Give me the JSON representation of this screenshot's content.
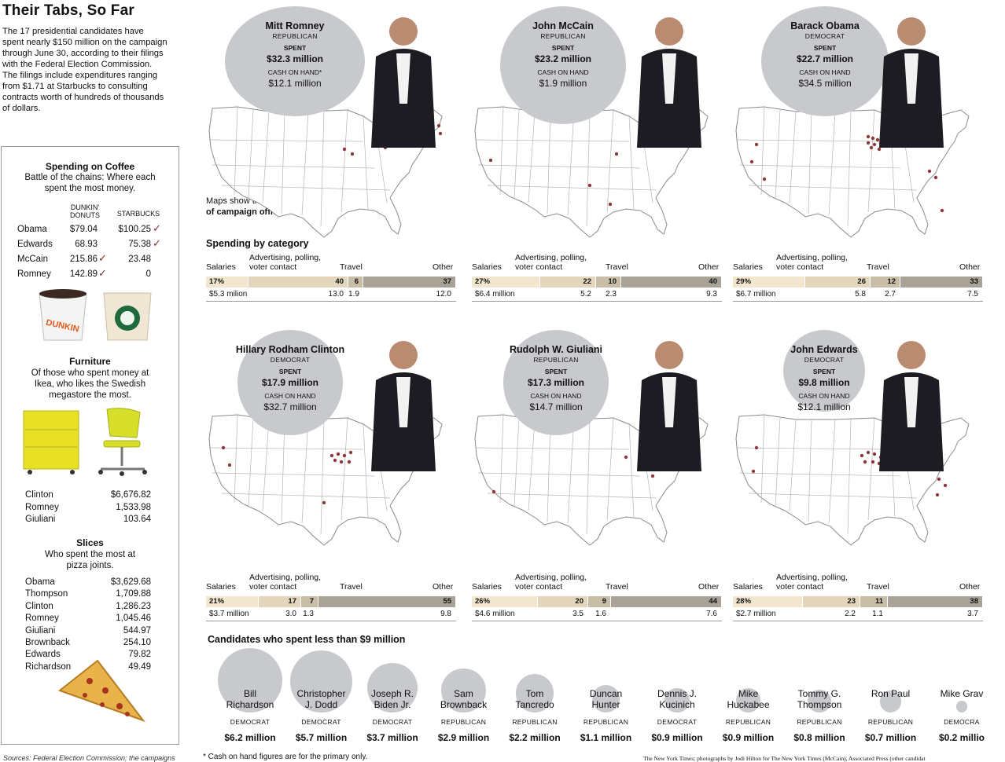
{
  "title": "Their Tabs, So Far",
  "intro": "The 17 presidential candidates have spent nearly $150 million on the campaign through June 30, according to their filings with the Federal Election Commission. The filings include expenditures ranging from $1.71 at Starbucks to consulting contracts worth of hundreds of thousands of dollars.",
  "colors": {
    "bubble": "#c7c9cc",
    "salaries": "#f2e6cf",
    "advertising": "#e3d6bd",
    "travel": "#c8bea8",
    "other": "#a9a296",
    "check": "#8a2a2a",
    "office_dot": "#8a3a3a"
  },
  "sidebar": {
    "coffee": {
      "heading": "Spending on Coffee",
      "subheading": "Battle of the chains: Where each spent the most money.",
      "col1": "DUNKIN' DONUTS",
      "col2": "STARBUCKS",
      "rows": [
        {
          "name": "Obama",
          "dunkin": "$79.04",
          "starbucks": "$100.25"
        },
        {
          "name": "Edwards",
          "dunkin": "68.93",
          "starbucks": "75.38"
        },
        {
          "name": "McCain",
          "dunkin": "215.86",
          "starbucks": "23.48"
        },
        {
          "name": "Romney",
          "dunkin": "142.89",
          "starbucks": "0"
        }
      ],
      "check_mark": "✓"
    },
    "furniture": {
      "heading": "Furniture",
      "subheading": "Of those who spent money at Ikea, who likes the Swedish megastore the most.",
      "rows": [
        {
          "name": "Clinton",
          "value": "$6,676.82"
        },
        {
          "name": "Romney",
          "value": "1,533.98"
        },
        {
          "name": "Giuliani",
          "value": "103.64"
        }
      ]
    },
    "slices": {
      "heading": "Slices",
      "subheading": "Who spent the most at pizza joints.",
      "rows": [
        {
          "name": "Obama",
          "value": "$3,629.68"
        },
        {
          "name": "Thompson",
          "value": "1,709.88"
        },
        {
          "name": "Clinton",
          "value": "1,286.23"
        },
        {
          "name": "Romney",
          "value": "1,045.46"
        },
        {
          "name": "Giuliani",
          "value": "544.97"
        },
        {
          "name": "Brownback",
          "value": "254.10"
        },
        {
          "name": "Edwards",
          "value": "79.82"
        },
        {
          "name": "Richardson",
          "value": "49.49"
        }
      ]
    }
  },
  "maps_note_1": "Maps show the locations",
  "maps_note_2": "of campaign offices",
  "spending_by_category": "Spending by category",
  "category_labels": {
    "salaries": "Salaries",
    "advertising": "Advertising, polling, voter contact",
    "travel": "Travel",
    "other": "Other"
  },
  "labels": {
    "spent": "SPENT",
    "cash_on_hand": "CASH ON HAND",
    "cash_on_hand_star": "CASH ON HAND*"
  },
  "candidates": [
    {
      "name": "Mitt Romney",
      "party": "REPUBLICAN",
      "spent": "$32.3 million",
      "cash": "$12.1 million",
      "star": true,
      "pct": [
        "17%",
        "40",
        "6",
        "37"
      ],
      "amounts": [
        "$5.3 milion",
        "13.0",
        "1.9",
        "12.0"
      ]
    },
    {
      "name": "John McCain",
      "party": "REPUBLICAN",
      "spent": "$23.2 million",
      "cash": "$1.9 million",
      "star": false,
      "pct": [
        "27%",
        "22",
        "10",
        "40"
      ],
      "amounts": [
        "$6.4 million",
        "5.2",
        "2.3",
        "9.3"
      ]
    },
    {
      "name": "Barack Obama",
      "party": "DEMOCRAT",
      "spent": "$22.7 million",
      "cash": "$34.5 million",
      "star": false,
      "pct": [
        "29%",
        "26",
        "12",
        "33"
      ],
      "amounts": [
        "$6.7 million",
        "5.8",
        "2.7",
        "7.5"
      ]
    },
    {
      "name": "Hillary Rodham Clinton",
      "party": "DEMOCRAT",
      "spent": "$17.9 million",
      "cash": "$32.7 million",
      "star": false,
      "pct": [
        "21%",
        "17",
        "7",
        "55"
      ],
      "amounts": [
        "$3.7 million",
        "3.0",
        "1.3",
        "9.8"
      ]
    },
    {
      "name": "Rudolph W. Giuliani",
      "party": "REPUBLICAN",
      "spent": "$17.3 million",
      "cash": "$14.7 million",
      "star": false,
      "pct": [
        "26%",
        "20",
        "9",
        "44"
      ],
      "amounts": [
        "$4.6 million",
        "3.5",
        "1.6",
        "7.6"
      ]
    },
    {
      "name": "John Edwards",
      "party": "DEMOCRAT",
      "spent": "$9.8 million",
      "cash": "$12.1 million",
      "star": false,
      "pct": [
        "28%",
        "23",
        "11",
        "38"
      ],
      "amounts": [
        "$2.7 million",
        "2.2",
        "1.1",
        "3.7"
      ]
    }
  ],
  "small_heading": "Candidates who spent less than $9 million",
  "small_candidates": [
    {
      "line1": "Bill",
      "line2": "Richardson",
      "party": "DEMOCRAT",
      "amount": "$6.2 million"
    },
    {
      "line1": "Christopher",
      "line2": "J. Dodd",
      "party": "DEMOCRAT",
      "amount": "$5.7 million"
    },
    {
      "line1": "Joseph R.",
      "line2": "Biden Jr.",
      "party": "DEMOCRAT",
      "amount": "$3.7 million"
    },
    {
      "line1": "Sam",
      "line2": "Brownback",
      "party": "REPUBLICAN",
      "amount": "$2.9 million"
    },
    {
      "line1": "Tom",
      "line2": "Tancredo",
      "party": "REPUBLICAN",
      "amount": "$2.2 million"
    },
    {
      "line1": "Duncan",
      "line2": "Hunter",
      "party": "REPUBLICAN",
      "amount": "$1.1 million"
    },
    {
      "line1": "Dennis J.",
      "line2": "Kucinich",
      "party": "DEMOCRAT",
      "amount": "$0.9 million"
    },
    {
      "line1": "Mike",
      "line2": "Huckabee",
      "party": "REPUBLICAN",
      "amount": "$0.9 million"
    },
    {
      "line1": "Tommy G.",
      "line2": "Thompson",
      "party": "REPUBLICAN",
      "amount": "$0.8 million"
    },
    {
      "line1": "Ron Paul",
      "line2": "",
      "party": "REPUBLICAN",
      "amount": "$0.7 million"
    },
    {
      "line1": "Mike Grav",
      "line2": "",
      "party": "DEMOCRA",
      "amount": "$0.2 millio"
    }
  ],
  "footnote": "* Cash on hand figures are for the primary only.",
  "sources": "Sources: Federal Election Commission; the campaigns",
  "credit": "The New York Times; photographs by Jodi Hilton for The New York Times (McCain), Associated Press (other candidat",
  "chart_data": [
    {
      "type": "bar",
      "title": "Spending by category",
      "categories": [
        "Salaries",
        "Advertising, polling, voter contact",
        "Travel",
        "Other"
      ],
      "series": [
        {
          "name": "Mitt Romney",
          "values": [
            17,
            40,
            6,
            37
          ],
          "amounts_millions": [
            5.3,
            13.0,
            1.9,
            12.0
          ]
        },
        {
          "name": "John McCain",
          "values": [
            27,
            22,
            10,
            40
          ],
          "amounts_millions": [
            6.4,
            5.2,
            2.3,
            9.3
          ]
        },
        {
          "name": "Barack Obama",
          "values": [
            29,
            26,
            12,
            33
          ],
          "amounts_millions": [
            6.7,
            5.8,
            2.7,
            7.5
          ]
        },
        {
          "name": "Hillary Rodham Clinton",
          "values": [
            21,
            17,
            7,
            55
          ],
          "amounts_millions": [
            3.7,
            3.0,
            1.3,
            9.8
          ]
        },
        {
          "name": "Rudolph W. Giuliani",
          "values": [
            26,
            20,
            9,
            44
          ],
          "amounts_millions": [
            4.6,
            3.5,
            1.6,
            7.6
          ]
        },
        {
          "name": "John Edwards",
          "values": [
            28,
            23,
            11,
            38
          ],
          "amounts_millions": [
            2.7,
            2.2,
            1.1,
            3.7
          ]
        }
      ]
    },
    {
      "type": "scatter",
      "title": "Candidates who spent less than $9 million",
      "categories": [
        "Bill Richardson",
        "Christopher J. Dodd",
        "Joseph R. Biden Jr.",
        "Sam Brownback",
        "Tom Tancredo",
        "Duncan Hunter",
        "Dennis J. Kucinich",
        "Mike Huckabee",
        "Tommy G. Thompson",
        "Ron Paul",
        "Mike Grav"
      ],
      "values": [
        6.2,
        5.7,
        3.7,
        2.9,
        2.2,
        1.1,
        0.9,
        0.9,
        0.8,
        0.7,
        0.2
      ]
    }
  ]
}
